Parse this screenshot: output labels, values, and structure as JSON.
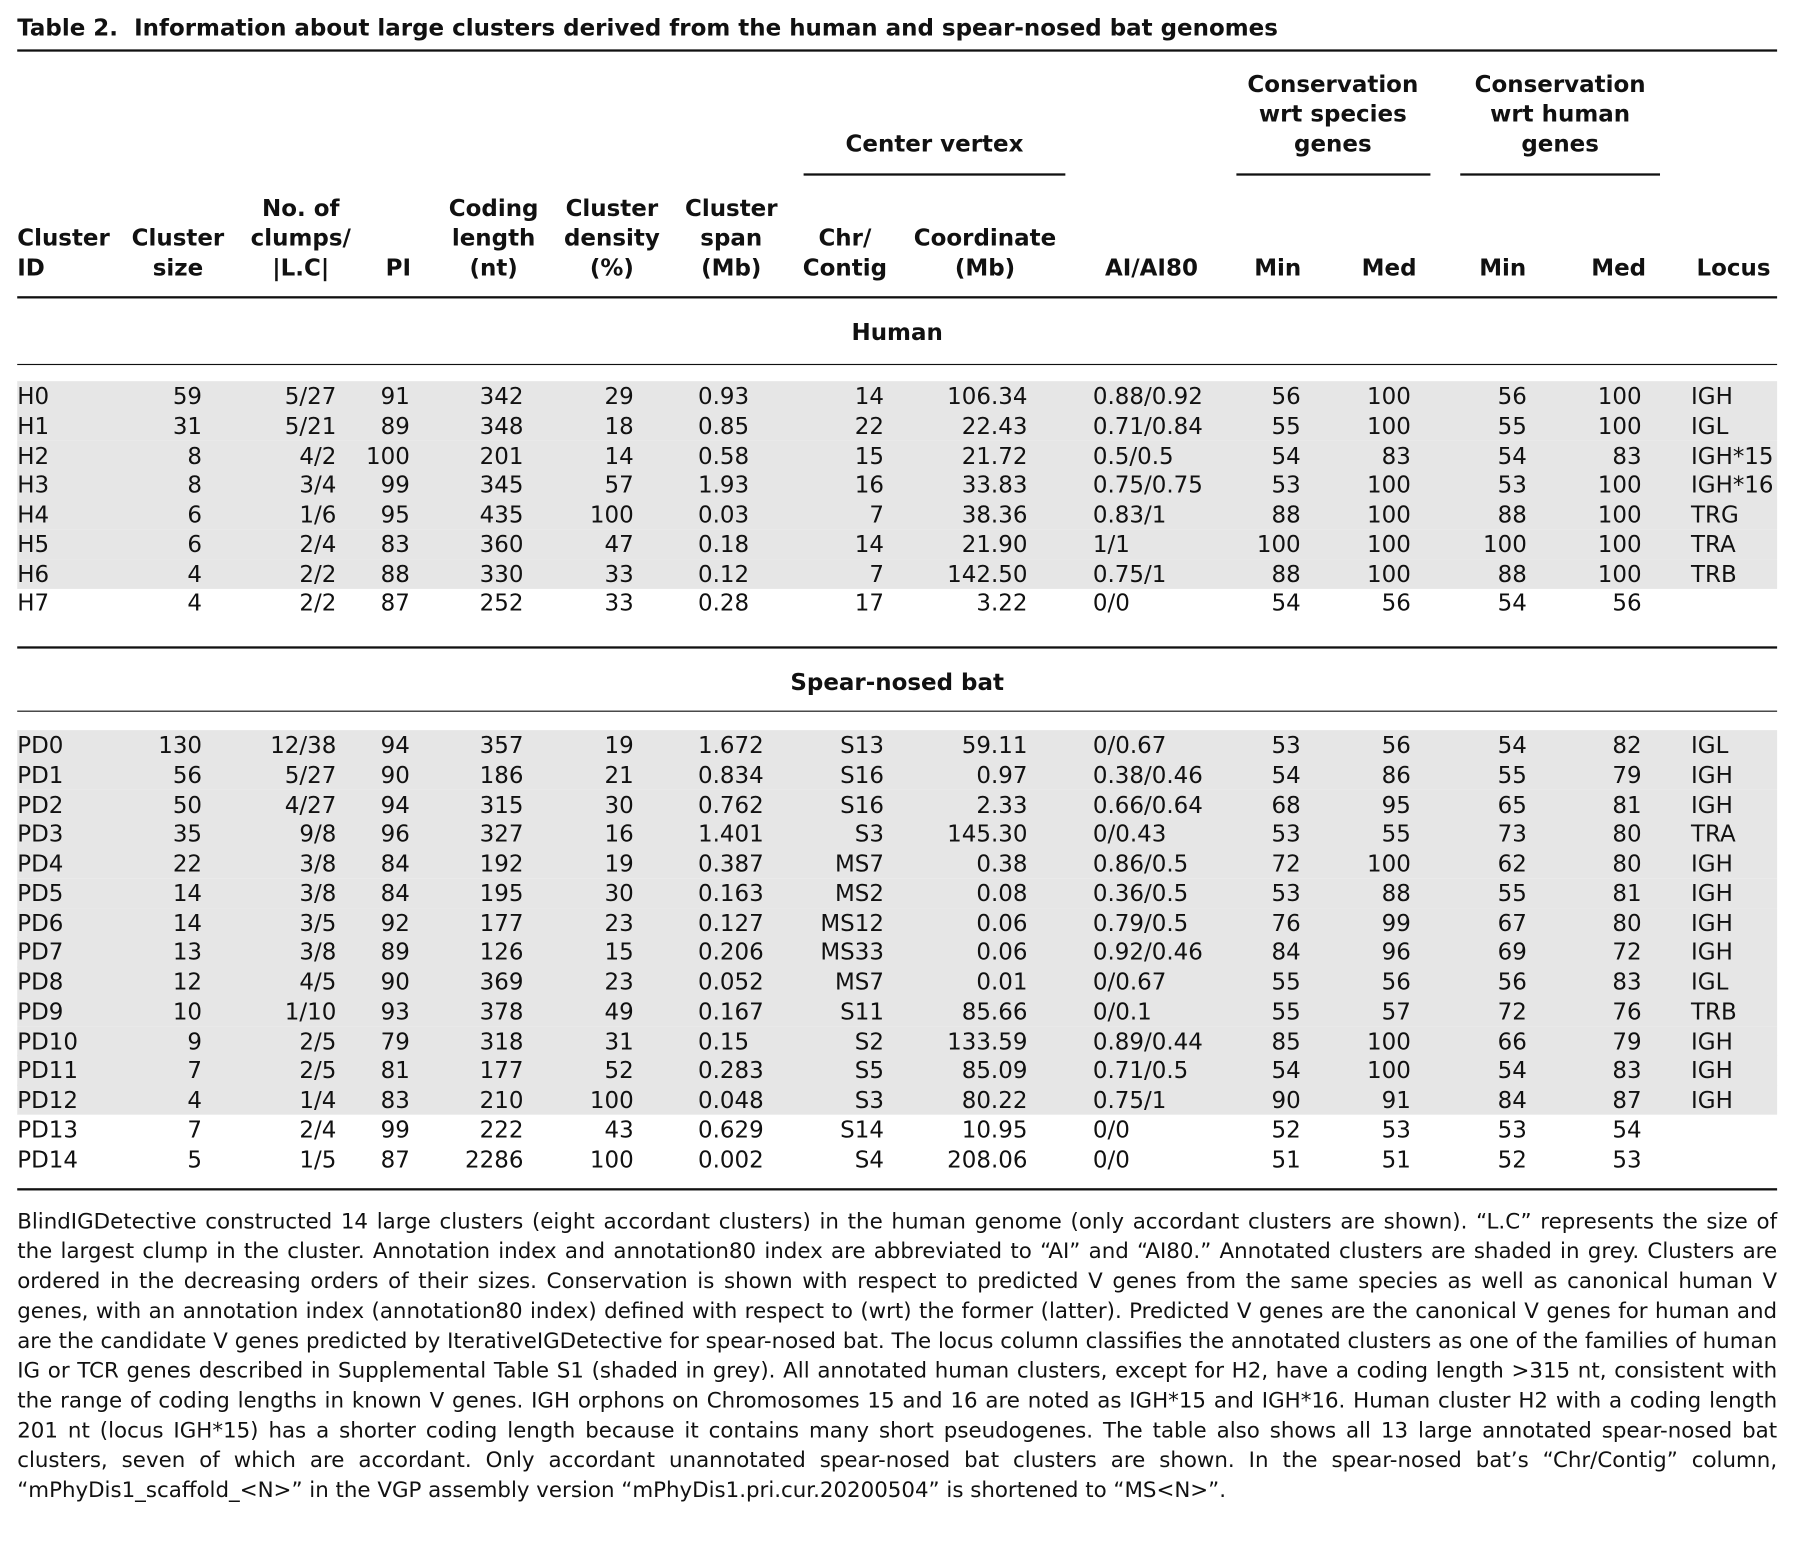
{
  "title": {
    "label": "Table 2.",
    "text": "Information about large clusters derived from the human and spear-nosed bat genomes"
  },
  "table": {
    "group_headers": [
      {
        "lines": [
          "Center vertex"
        ]
      },
      {
        "lines": [
          "Conservation",
          "wrt species",
          "genes"
        ]
      },
      {
        "lines": [
          "Conservation",
          "wrt human",
          "genes"
        ]
      }
    ],
    "columns": [
      {
        "lines": [
          "Cluster",
          "ID"
        ]
      },
      {
        "lines": [
          "Cluster",
          "size"
        ]
      },
      {
        "lines": [
          "No. of",
          "clumps/",
          "|L.C|"
        ]
      },
      {
        "lines": [
          "PI"
        ]
      },
      {
        "lines": [
          "Coding",
          "length",
          "(nt)"
        ]
      },
      {
        "lines": [
          "Cluster",
          "density",
          "(%)"
        ]
      },
      {
        "lines": [
          "Cluster",
          "span",
          "(Mb)"
        ]
      },
      {
        "lines": [
          "Chr/",
          "Contig"
        ]
      },
      {
        "lines": [
          "Coordinate",
          "(Mb)"
        ]
      },
      {
        "lines": [
          "AI/AI80"
        ]
      },
      {
        "lines": [
          "Min"
        ]
      },
      {
        "lines": [
          "Med"
        ]
      },
      {
        "lines": [
          "Min"
        ]
      },
      {
        "lines": [
          "Med"
        ]
      },
      {
        "lines": [
          "Locus"
        ]
      }
    ],
    "sections": [
      {
        "name": "Human",
        "rows": [
          {
            "shaded": true,
            "cells": [
              "H0",
              "59",
              "5/27",
              "91",
              "342",
              "29",
              "0.93",
              "14",
              "106.34",
              "0.88/0.92",
              "56",
              "100",
              "56",
              "100",
              "IGH"
            ]
          },
          {
            "shaded": true,
            "cells": [
              "H1",
              "31",
              "5/21",
              "89",
              "348",
              "18",
              "0.85",
              "22",
              "22.43",
              "0.71/0.84",
              "55",
              "100",
              "55",
              "100",
              "IGL"
            ]
          },
          {
            "shaded": true,
            "cells": [
              "H2",
              "8",
              "4/2",
              "100",
              "201",
              "14",
              "0.58",
              "15",
              "21.72",
              "0.5/0.5",
              "54",
              "83",
              "54",
              "83",
              "IGH*15"
            ]
          },
          {
            "shaded": true,
            "cells": [
              "H3",
              "8",
              "3/4",
              "99",
              "345",
              "57",
              "1.93",
              "16",
              "33.83",
              "0.75/0.75",
              "53",
              "100",
              "53",
              "100",
              "IGH*16"
            ]
          },
          {
            "shaded": true,
            "cells": [
              "H4",
              "6",
              "1/6",
              "95",
              "435",
              "100",
              "0.03",
              "7",
              "38.36",
              "0.83/1",
              "88",
              "100",
              "88",
              "100",
              "TRG"
            ]
          },
          {
            "shaded": true,
            "cells": [
              "H5",
              "6",
              "2/4",
              "83",
              "360",
              "47",
              "0.18",
              "14",
              "21.90",
              "1/1",
              "100",
              "100",
              "100",
              "100",
              "TRA"
            ]
          },
          {
            "shaded": true,
            "cells": [
              "H6",
              "4",
              "2/2",
              "88",
              "330",
              "33",
              "0.12",
              "7",
              "142.50",
              "0.75/1",
              "88",
              "100",
              "88",
              "100",
              "TRB"
            ]
          },
          {
            "shaded": false,
            "cells": [
              "H7",
              "4",
              "2/2",
              "87",
              "252",
              "33",
              "0.28",
              "17",
              "3.22",
              "0/0",
              "54",
              "56",
              "54",
              "56"
            ]
          }
        ]
      },
      {
        "name": "Spear-nosed bat",
        "rows": [
          {
            "shaded": true,
            "cells": [
              "PD0",
              "130",
              "12/38",
              "94",
              "357",
              "19",
              "1.672",
              "S13",
              "59.11",
              "0/0.67",
              "53",
              "56",
              "54",
              "82",
              "IGL"
            ]
          },
          {
            "shaded": true,
            "cells": [
              "PD1",
              "56",
              "5/27",
              "90",
              "186",
              "21",
              "0.834",
              "S16",
              "0.97",
              "0.38/0.46",
              "54",
              "86",
              "55",
              "79",
              "IGH"
            ]
          },
          {
            "shaded": true,
            "cells": [
              "PD2",
              "50",
              "4/27",
              "94",
              "315",
              "30",
              "0.762",
              "S16",
              "2.33",
              "0.66/0.64",
              "68",
              "95",
              "65",
              "81",
              "IGH"
            ]
          },
          {
            "shaded": true,
            "cells": [
              "PD3",
              "35",
              "9/8",
              "96",
              "327",
              "16",
              "1.401",
              "S3",
              "145.30",
              "0/0.43",
              "53",
              "55",
              "73",
              "80",
              "TRA"
            ]
          },
          {
            "shaded": true,
            "cells": [
              "PD4",
              "22",
              "3/8",
              "84",
              "192",
              "19",
              "0.387",
              "MS7",
              "0.38",
              "0.86/0.5",
              "72",
              "100",
              "62",
              "80",
              "IGH"
            ]
          },
          {
            "shaded": true,
            "cells": [
              "PD5",
              "14",
              "3/8",
              "84",
              "195",
              "30",
              "0.163",
              "MS2",
              "0.08",
              "0.36/0.5",
              "53",
              "88",
              "55",
              "81",
              "IGH"
            ]
          },
          {
            "shaded": true,
            "cells": [
              "PD6",
              "14",
              "3/5",
              "92",
              "177",
              "23",
              "0.127",
              "MS12",
              "0.06",
              "0.79/0.5",
              "76",
              "99",
              "67",
              "80",
              "IGH"
            ]
          },
          {
            "shaded": true,
            "cells": [
              "PD7",
              "13",
              "3/8",
              "89",
              "126",
              "15",
              "0.206",
              "MS33",
              "0.06",
              "0.92/0.46",
              "84",
              "96",
              "69",
              "72",
              "IGH"
            ]
          },
          {
            "shaded": true,
            "cells": [
              "PD8",
              "12",
              "4/5",
              "90",
              "369",
              "23",
              "0.052",
              "MS7",
              "0.01",
              "0/0.67",
              "55",
              "56",
              "56",
              "83",
              "IGL"
            ]
          },
          {
            "shaded": true,
            "cells": [
              "PD9",
              "10",
              "1/10",
              "93",
              "378",
              "49",
              "0.167",
              "S11",
              "85.66",
              "0/0.1",
              "55",
              "57",
              "72",
              "76",
              "TRB"
            ]
          },
          {
            "shaded": true,
            "cells": [
              "PD10",
              "9",
              "2/5",
              "79",
              "318",
              "31",
              "0.15",
              "S2",
              "133.59",
              "0.89/0.44",
              "85",
              "100",
              "66",
              "79",
              "IGH"
            ]
          },
          {
            "shaded": true,
            "cells": [
              "PD11",
              "7",
              "2/5",
              "81",
              "177",
              "52",
              "0.283",
              "S5",
              "85.09",
              "0.71/0.5",
              "54",
              "100",
              "54",
              "83",
              "IGH"
            ]
          },
          {
            "shaded": true,
            "cells": [
              "PD12",
              "4",
              "1/4",
              "83",
              "210",
              "100",
              "0.048",
              "S3",
              "80.22",
              "0.75/1",
              "90",
              "91",
              "84",
              "87",
              "IGH"
            ]
          },
          {
            "shaded": false,
            "cells": [
              "PD13",
              "7",
              "2/4",
              "99",
              "222",
              "43",
              "0.629",
              "S14",
              "10.95",
              "0/0",
              "52",
              "53",
              "53",
              "54"
            ]
          },
          {
            "shaded": false,
            "cells": [
              "PD14",
              "5",
              "1/5",
              "87",
              "2286",
              "100",
              "0.002",
              "S4",
              "208.06",
              "0/0",
              "51",
              "51",
              "52",
              "53"
            ]
          }
        ]
      }
    ]
  },
  "footnote": "BlindIGDetective constructed 14 large clusters (eight accordant clusters) in the human genome (only accordant clusters are shown). “L.C” represents the size of the largest clump in the cluster. Annotation index and annotation80 index are abbreviated to “AI” and “AI80.” Annotated clusters are shaded in grey. Clusters are ordered in the decreasing orders of their sizes. Conservation is shown with respect to predicted V genes from the same species as well as canonical human V genes, with an annotation index (annotation80 index) defined with respect to (wrt) the former (latter). Predicted V genes are the canonical V genes for human and are the candidate V genes predicted by IterativeIGDetective for spear-nosed bat. The locus column classifies the annotated clusters as one of the families of human IG or TCR genes described in Supplemental Table S1 (shaded in grey). All annotated human clusters, except for H2, have a coding length >315 nt, consistent with the range of coding lengths in known V genes. IGH orphons on Chromosomes 15 and 16 are noted as IGH*15 and IGH*16. Human cluster H2 with a coding length 201 nt (locus IGH*15) has a shorter coding length because it contains many short pseudogenes. The table also shows all 13 large annotated spear-nosed bat clusters, seven of which are accordant. Only accordant unannotated spear-nosed bat clusters are shown. In the spear-nosed bat’s “Chr/Contig” column, “mPhyDis1_scaffold_<N>” in the VGP assembly version “mPhyDis1.pri.cur.20200504” is shortened to “MS<N>”."
}
